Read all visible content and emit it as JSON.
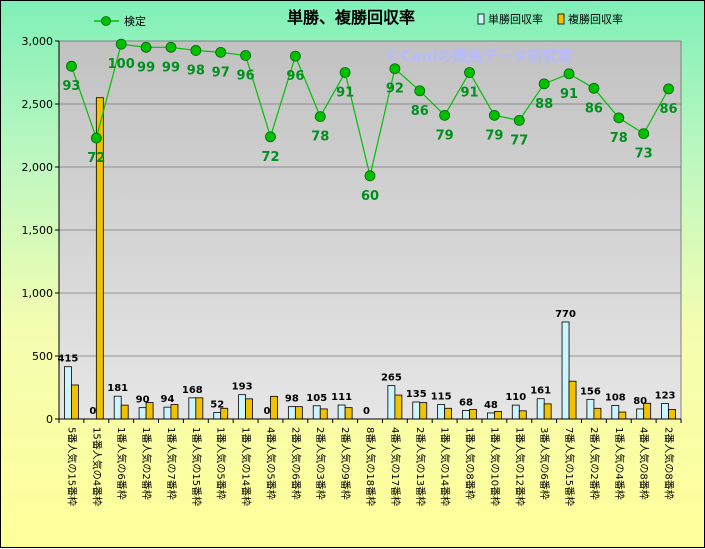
{
  "chart_data": {
    "type": "bar",
    "title": "単勝、複勝回収率",
    "watermark": "©Caniの競馬データ研究室",
    "ylim": [
      0,
      3000
    ],
    "yticks": [
      "0",
      "500",
      "1,000",
      "1,500",
      "2,000",
      "2,500",
      "3,000"
    ],
    "ytick_values": [
      0,
      500,
      1000,
      1500,
      2000,
      2500,
      3000
    ],
    "legend_placement": "top",
    "grid": true,
    "categories": [
      "5番人気の15番枠",
      "15番人気の4番枠",
      "1番人気の6番枠",
      "1番人気の2番枠",
      "1番人気の7番枠",
      "1番人気の15番枠",
      "1番人気の5番枠",
      "1番人気の14番枠",
      "4番人気の5番枠",
      "2番人気の6番枠",
      "2番人気の3番枠",
      "2番人気の9番枠",
      "8番人気の18番枠",
      "4番人気の17番枠",
      "2番人気の13番枠",
      "1番人気の14番枠",
      "1番人気の8番枠",
      "1番人気の10番枠",
      "1番人気の12番枠",
      "3番人気の6番枠",
      "7番人気の15番枠",
      "2番人気の2番枠",
      "1番人気の4番枠",
      "4番人気の8番枠",
      "2番人気の8番枠"
    ],
    "series": [
      {
        "name": "単勝回収率",
        "kind": "bar",
        "color": "#cdf5ff",
        "values": [
          415,
          0,
          181,
          90,
          94,
          168,
          52,
          193,
          0,
          98,
          105,
          111,
          0,
          265,
          135,
          115,
          68,
          48,
          110,
          161,
          770,
          156,
          108,
          80,
          123
        ],
        "labels": [
          "415",
          "0",
          "181",
          "90",
          "94",
          "168",
          "52",
          "193",
          "0",
          "98",
          "105",
          "111",
          "0",
          "265",
          "135",
          "115",
          "68",
          "48",
          "110",
          "161",
          "770",
          "156",
          "108",
          "80",
          "123"
        ]
      },
      {
        "name": "複勝回収率",
        "kind": "bar",
        "color": "#f2c200",
        "values": [
          270,
          2550,
          110,
          130,
          115,
          168,
          85,
          160,
          180,
          98,
          80,
          90,
          0,
          190,
          130,
          85,
          75,
          60,
          65,
          120,
          300,
          85,
          55,
          125,
          75
        ]
      },
      {
        "name": "検定",
        "kind": "line",
        "color": "#00c000",
        "values": [
          93,
          72,
          100,
          99,
          99,
          98,
          97,
          96,
          72,
          96,
          78,
          91,
          60,
          92,
          86,
          79,
          91,
          79,
          77,
          88,
          91,
          86,
          78,
          73,
          86
        ],
        "plot_values": [
          2800,
          2230,
          2975,
          2950,
          2950,
          2925,
          2910,
          2885,
          2240,
          2880,
          2400,
          2750,
          1930,
          2780,
          2605,
          2410,
          2750,
          2410,
          2370,
          2660,
          2740,
          2625,
          2390,
          2265,
          2620
        ],
        "labels": [
          "93",
          "72",
          "100",
          "99",
          "99",
          "98",
          "97",
          "96",
          "72",
          "96",
          "78",
          "91",
          "60",
          "92",
          "86",
          "79",
          "91",
          "79",
          "77",
          "88",
          "91",
          "86",
          "78",
          "73",
          "86"
        ]
      }
    ]
  }
}
